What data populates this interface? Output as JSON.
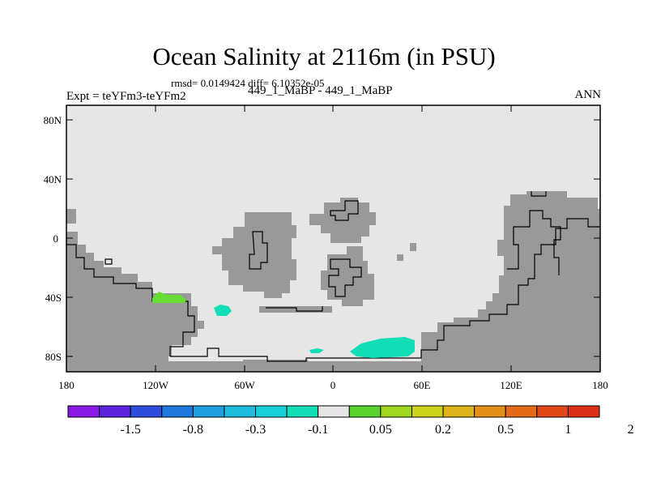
{
  "title": "Ocean Salinity at 2116m (in PSU)",
  "stats": "rmsd= 0.0149424 diff= 6.10352e-05",
  "left_label": "Expt = teYFm3-teYFm2",
  "center_label": "449_1_MaBP - 449_1_MaBP",
  "right_label": "ANN",
  "map": {
    "lon_ticks": [
      "180",
      "120W",
      "60W",
      "0",
      "60E",
      "120E",
      "180"
    ],
    "lat_ticks": [
      "80N",
      "40N",
      "0",
      "40S",
      "80S"
    ],
    "colors": {
      "land": "#999999",
      "ocean_neutral": "#e6e6e6",
      "green_anomaly": "#66dd33",
      "teal_anomaly": "#11ddb7"
    }
  },
  "colorbar": {
    "colors": [
      "#8a1ae6",
      "#5a22dc",
      "#2e4fdd",
      "#1f78dd",
      "#1f9fe0",
      "#1fbde0",
      "#15d0d8",
      "#11ddb7",
      "#e6e6e6",
      "#5bd230",
      "#a0d81f",
      "#cbd41b",
      "#dcb418",
      "#e3901a",
      "#e36a18",
      "#e24818",
      "#dd3016"
    ],
    "labels": [
      "-1.5",
      "-0.8",
      "-0.3",
      "-0.1",
      "0.05",
      "0.2",
      "0.5",
      "1",
      "2"
    ]
  }
}
